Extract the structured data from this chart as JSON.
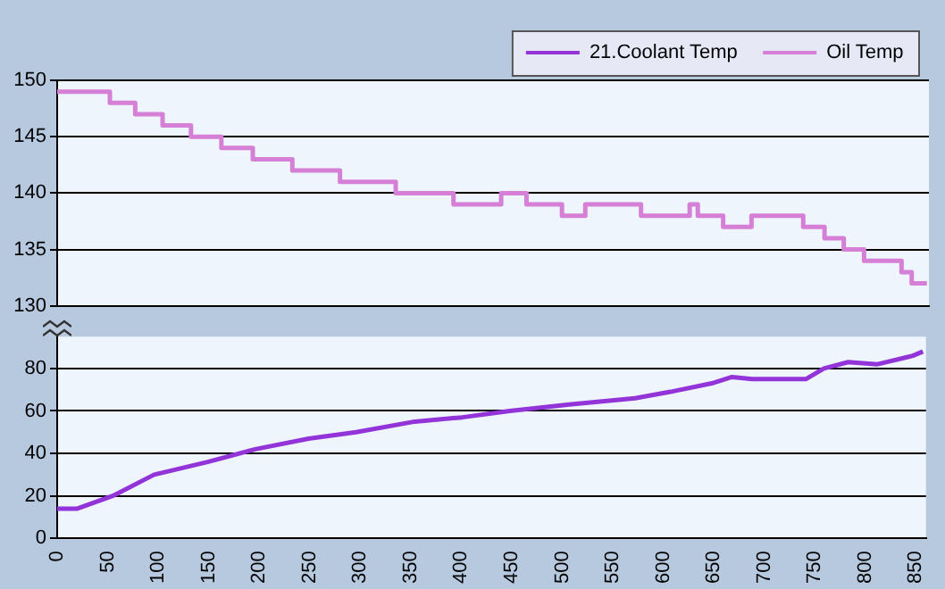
{
  "chart_data": [
    {
      "type": "step",
      "xlim": [
        0,
        860
      ],
      "ylim": [
        130,
        150
      ],
      "yticks": [
        130,
        135,
        140,
        145,
        150
      ],
      "grid": "y",
      "legend": "top right",
      "tick_labels": "y",
      "series": [
        {
          "name": "Oil Temp",
          "color": "#d67fd6",
          "x": [
            0,
            52,
            77,
            104,
            132,
            162,
            193,
            232,
            279,
            334,
            391,
            438,
            463,
            498,
            521,
            576,
            624,
            632,
            657,
            685,
            736,
            757,
            776,
            796,
            833,
            843,
            858
          ],
          "values": [
            149,
            148,
            147,
            146,
            145,
            144,
            143,
            142,
            141,
            140,
            139,
            140,
            139,
            138,
            139,
            138,
            139,
            138,
            137,
            138,
            137,
            136,
            135,
            134,
            133,
            132,
            132
          ]
        }
      ]
    },
    {
      "type": "line",
      "xlim": [
        0,
        860
      ],
      "xticks": [
        0,
        50,
        100,
        150,
        200,
        250,
        300,
        350,
        400,
        450,
        500,
        550,
        600,
        650,
        700,
        750,
        800,
        850
      ],
      "ylim": [
        0,
        95
      ],
      "yticks": [
        0,
        20,
        40,
        60,
        80
      ],
      "grid": "y",
      "series": [
        {
          "name": "21.Coolant Temp",
          "color": "#9234d8",
          "x": [
            0,
            20,
            55,
            96,
            149,
            196,
            249,
            296,
            354,
            401,
            448,
            507,
            572,
            607,
            648,
            668,
            688,
            741,
            759,
            783,
            812,
            847,
            857
          ],
          "values": [
            14,
            14,
            20,
            30,
            36,
            42,
            47,
            50,
            55,
            57,
            60,
            63,
            66,
            69,
            73,
            76,
            75,
            75,
            80,
            83,
            82,
            86,
            88
          ]
        }
      ]
    }
  ]
}
